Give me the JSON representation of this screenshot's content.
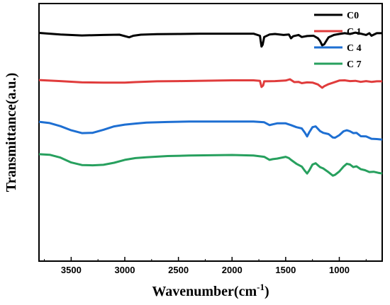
{
  "chart_data": {
    "type": "line",
    "title": "",
    "xlabel": "Wavenumber(cm",
    "xlabel_sup": "-1",
    "xlabel_close": ")",
    "ylabel": "Transmittance(a.u.)",
    "xlim": [
      3800,
      600
    ],
    "x_reversed": true,
    "xticks": [
      3500,
      3000,
      2500,
      2000,
      1500,
      1000
    ],
    "xtick_labels": [
      "3500",
      "3000",
      "2500",
      "2000",
      "1500",
      "1000"
    ],
    "y_ticks_shown": false,
    "ylim": [
      0,
      100
    ],
    "grid": false,
    "legend_position": "top-right",
    "series": [
      {
        "name": "C0",
        "color": "#000000",
        "points": [
          [
            3800,
            88.6
          ],
          [
            3600,
            88.0
          ],
          [
            3400,
            87.6
          ],
          [
            3200,
            87.8
          ],
          [
            3050,
            87.9
          ],
          [
            2960,
            86.9
          ],
          [
            2920,
            87.5
          ],
          [
            2850,
            87.9
          ],
          [
            2700,
            88.1
          ],
          [
            2500,
            88.2
          ],
          [
            2300,
            88.3
          ],
          [
            2000,
            88.3
          ],
          [
            1800,
            88.3
          ],
          [
            1740,
            87.5
          ],
          [
            1725,
            83.3
          ],
          [
            1715,
            84.0
          ],
          [
            1700,
            87.0
          ],
          [
            1650,
            88.0
          ],
          [
            1600,
            88.2
          ],
          [
            1520,
            87.8
          ],
          [
            1470,
            88.0
          ],
          [
            1450,
            86.5
          ],
          [
            1430,
            87.3
          ],
          [
            1380,
            87.8
          ],
          [
            1350,
            87.0
          ],
          [
            1300,
            87.4
          ],
          [
            1240,
            87.5
          ],
          [
            1200,
            86.5
          ],
          [
            1180,
            85.5
          ],
          [
            1160,
            83.8
          ],
          [
            1140,
            84.2
          ],
          [
            1120,
            85.6
          ],
          [
            1100,
            86.9
          ],
          [
            1050,
            87.8
          ],
          [
            1000,
            88.2
          ],
          [
            950,
            88.5
          ],
          [
            900,
            88.2
          ],
          [
            850,
            88.7
          ],
          [
            800,
            88.3
          ],
          [
            750,
            87.8
          ],
          [
            720,
            88.5
          ],
          [
            700,
            87.5
          ],
          [
            650,
            88.5
          ],
          [
            600,
            88.5
          ]
        ]
      },
      {
        "name": "C 1",
        "color": "#e03c3c",
        "points": [
          [
            3800,
            70.3
          ],
          [
            3600,
            69.9
          ],
          [
            3400,
            69.4
          ],
          [
            3200,
            69.3
          ],
          [
            3000,
            69.3
          ],
          [
            2900,
            69.5
          ],
          [
            2700,
            69.8
          ],
          [
            2500,
            69.9
          ],
          [
            2000,
            70.2
          ],
          [
            1800,
            70.2
          ],
          [
            1740,
            70.0
          ],
          [
            1725,
            67.6
          ],
          [
            1710,
            68.2
          ],
          [
            1700,
            69.8
          ],
          [
            1600,
            69.9
          ],
          [
            1500,
            70.1
          ],
          [
            1460,
            70.6
          ],
          [
            1420,
            69.5
          ],
          [
            1380,
            69.6
          ],
          [
            1350,
            69.1
          ],
          [
            1300,
            69.4
          ],
          [
            1250,
            69.3
          ],
          [
            1200,
            68.6
          ],
          [
            1160,
            67.3
          ],
          [
            1140,
            67.9
          ],
          [
            1100,
            68.7
          ],
          [
            1050,
            69.4
          ],
          [
            1000,
            70.1
          ],
          [
            950,
            70.2
          ],
          [
            900,
            69.9
          ],
          [
            850,
            70.0
          ],
          [
            800,
            69.6
          ],
          [
            750,
            69.9
          ],
          [
            700,
            69.6
          ],
          [
            650,
            69.8
          ],
          [
            600,
            69.8
          ]
        ]
      },
      {
        "name": "C 4",
        "color": "#1e6fd2",
        "points": [
          [
            3800,
            54.1
          ],
          [
            3700,
            53.6
          ],
          [
            3600,
            52.4
          ],
          [
            3500,
            50.8
          ],
          [
            3400,
            49.7
          ],
          [
            3300,
            49.8
          ],
          [
            3200,
            51.0
          ],
          [
            3100,
            52.3
          ],
          [
            3000,
            53.0
          ],
          [
            2900,
            53.4
          ],
          [
            2800,
            53.8
          ],
          [
            2600,
            54.0
          ],
          [
            2400,
            54.2
          ],
          [
            2200,
            54.2
          ],
          [
            2000,
            54.2
          ],
          [
            1800,
            54.2
          ],
          [
            1700,
            53.9
          ],
          [
            1650,
            52.8
          ],
          [
            1620,
            53.1
          ],
          [
            1580,
            53.5
          ],
          [
            1500,
            53.5
          ],
          [
            1450,
            52.8
          ],
          [
            1400,
            52.0
          ],
          [
            1350,
            51.5
          ],
          [
            1320,
            49.8
          ],
          [
            1300,
            48.4
          ],
          [
            1280,
            50.0
          ],
          [
            1250,
            52.0
          ],
          [
            1220,
            52.3
          ],
          [
            1180,
            50.5
          ],
          [
            1150,
            49.8
          ],
          [
            1100,
            49.3
          ],
          [
            1060,
            48.0
          ],
          [
            1040,
            47.9
          ],
          [
            1000,
            48.9
          ],
          [
            960,
            50.4
          ],
          [
            930,
            50.8
          ],
          [
            900,
            50.4
          ],
          [
            870,
            49.7
          ],
          [
            840,
            49.8
          ],
          [
            800,
            48.5
          ],
          [
            750,
            48.4
          ],
          [
            700,
            47.5
          ],
          [
            650,
            47.4
          ],
          [
            600,
            47.2
          ]
        ]
      },
      {
        "name": "C 7",
        "color": "#27a05e",
        "points": [
          [
            3800,
            41.5
          ],
          [
            3700,
            41.3
          ],
          [
            3600,
            40.2
          ],
          [
            3500,
            38.3
          ],
          [
            3400,
            37.3
          ],
          [
            3300,
            37.2
          ],
          [
            3200,
            37.4
          ],
          [
            3100,
            38.2
          ],
          [
            3000,
            39.3
          ],
          [
            2900,
            40.0
          ],
          [
            2800,
            40.3
          ],
          [
            2600,
            40.8
          ],
          [
            2400,
            41.0
          ],
          [
            2200,
            41.1
          ],
          [
            2000,
            41.2
          ],
          [
            1800,
            41.0
          ],
          [
            1700,
            40.5
          ],
          [
            1650,
            39.3
          ],
          [
            1620,
            39.6
          ],
          [
            1580,
            39.8
          ],
          [
            1500,
            40.5
          ],
          [
            1470,
            40.0
          ],
          [
            1450,
            39.3
          ],
          [
            1400,
            37.8
          ],
          [
            1350,
            36.7
          ],
          [
            1320,
            35.0
          ],
          [
            1300,
            34.0
          ],
          [
            1280,
            35.2
          ],
          [
            1250,
            37.5
          ],
          [
            1220,
            38.0
          ],
          [
            1180,
            36.5
          ],
          [
            1150,
            36.0
          ],
          [
            1100,
            34.5
          ],
          [
            1060,
            33.2
          ],
          [
            1040,
            33.5
          ],
          [
            1000,
            34.8
          ],
          [
            960,
            36.7
          ],
          [
            930,
            37.8
          ],
          [
            900,
            37.5
          ],
          [
            870,
            36.5
          ],
          [
            840,
            36.8
          ],
          [
            800,
            35.7
          ],
          [
            760,
            35.3
          ],
          [
            720,
            34.6
          ],
          [
            680,
            34.7
          ],
          [
            640,
            34.3
          ],
          [
            600,
            34.0
          ]
        ]
      }
    ]
  }
}
